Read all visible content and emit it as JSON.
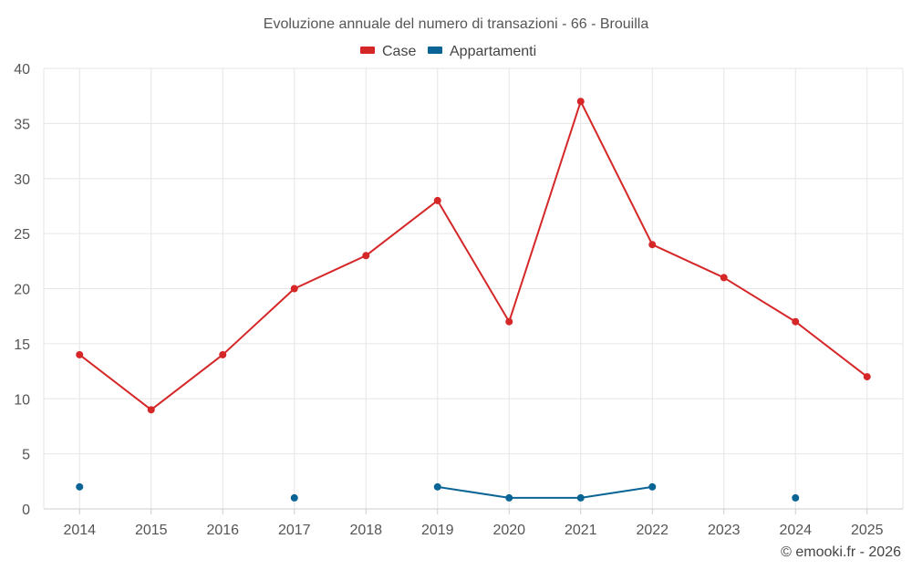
{
  "chart_data": {
    "type": "line",
    "title": "Evoluzione annuale del numero di transazioni - 66 - Brouilla",
    "categories": [
      "2014",
      "2015",
      "2016",
      "2017",
      "2018",
      "2019",
      "2020",
      "2021",
      "2022",
      "2023",
      "2024",
      "2025"
    ],
    "series": [
      {
        "name": "Case",
        "color": "#d62728",
        "values": [
          14,
          9,
          14,
          20,
          23,
          28,
          17,
          37,
          24,
          21,
          17,
          12
        ]
      },
      {
        "name": "Appartamenti",
        "color": "#0a6496",
        "values": [
          2,
          null,
          null,
          1,
          null,
          2,
          1,
          1,
          2,
          null,
          1,
          null
        ]
      }
    ],
    "ylim": [
      0,
      40
    ],
    "yticks": [
      "0",
      "5",
      "10",
      "15",
      "20",
      "25",
      "30",
      "35",
      "40"
    ],
    "xlabel": "",
    "ylabel": "",
    "grid": true,
    "legend": "top-center"
  },
  "credit": "© emooki.fr - 2026"
}
